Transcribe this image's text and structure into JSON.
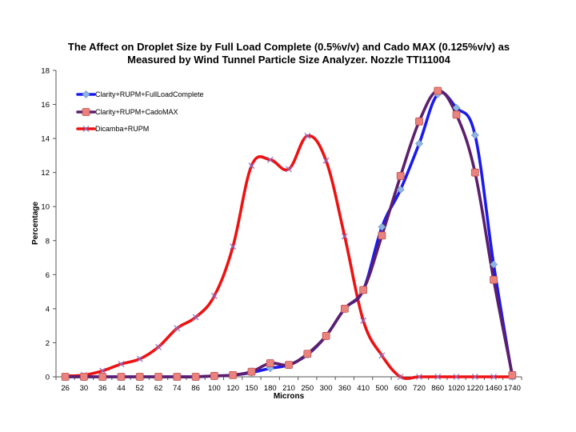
{
  "chart_data": {
    "type": "line",
    "title_line1": "The Affect on Droplet Size by Full Load Complete (0.5%v/v) and Cado MAX (0.125%v/v) as",
    "title_line2": "Measured by Wind Tunnel Particle Size Analyzer. Nozzle TTI11004",
    "xlabel": "Microns",
    "ylabel": "Percentage",
    "ylim": [
      0,
      18
    ],
    "y_ticks": [
      0,
      2,
      4,
      6,
      8,
      10,
      12,
      14,
      16,
      18
    ],
    "grid": false,
    "legend_position": "top-left",
    "categories": [
      "26",
      "30",
      "36",
      "44",
      "52",
      "62",
      "74",
      "86",
      "100",
      "120",
      "150",
      "180",
      "210",
      "250",
      "300",
      "360",
      "410",
      "500",
      "600",
      "720",
      "860",
      "1020",
      "1220",
      "1460",
      "1740"
    ],
    "series": [
      {
        "name": "Clarity+RUPM+FullLoadComplete",
        "color": "#1a1aee",
        "marker": "diamond",
        "marker_color": "#8fb4e3",
        "values": [
          0,
          0,
          0,
          0,
          0,
          0,
          0,
          0,
          0.05,
          0.1,
          0.25,
          0.5,
          0.7,
          1.3,
          2.4,
          4.0,
          5.1,
          8.8,
          11.0,
          13.7,
          16.6,
          15.8,
          14.2,
          6.6,
          0
        ]
      },
      {
        "name": "Clarity+RUPM+CadoMAX",
        "color": "#5b1f6e",
        "marker": "square",
        "marker_color": "#e9837e",
        "values": [
          0,
          0,
          0,
          0,
          0,
          0,
          0,
          0,
          0.05,
          0.1,
          0.3,
          0.8,
          0.7,
          1.35,
          2.4,
          4.0,
          5.1,
          8.3,
          11.8,
          15.0,
          16.8,
          15.4,
          12.0,
          5.7,
          0.1
        ]
      },
      {
        "name": "Dicamba+RUPM",
        "color": "#ee1111",
        "marker": "x",
        "marker_color": "#8b6fc7",
        "values": [
          0.05,
          0.1,
          0.35,
          0.75,
          1.05,
          1.75,
          2.85,
          3.5,
          4.75,
          7.65,
          12.4,
          12.75,
          12.2,
          14.15,
          12.7,
          8.25,
          3.3,
          1.25,
          0,
          0,
          0,
          0,
          0,
          0,
          0
        ]
      }
    ]
  }
}
